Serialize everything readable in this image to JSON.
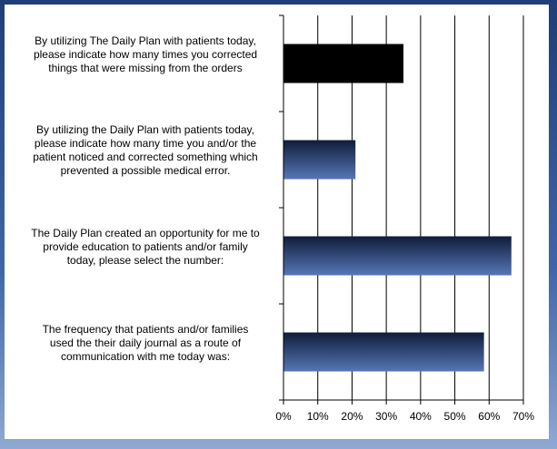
{
  "chart_data": {
    "type": "bar",
    "orientation": "horizontal",
    "categories": [
      "By utilizing The Daily Plan with patients today,\nplease indicate how  many times you corrected\nthings that were missing from the orders",
      "By utilizing the Daily Plan with patients today,\nplease indicate how  many time you and/or the\npatient noticed and corrected something which\nprevented a possible medical error.",
      "The Daily Plan created an opportunity for me to\nprovide education to patients and/or family\ntoday, please select the number:",
      "The frequency that patients and/or families\nused the their daily journal as a route of\ncommunication with me today was:"
    ],
    "values": [
      35,
      21,
      66.5,
      58.5
    ],
    "xlim": [
      0,
      70
    ],
    "x_ticks": [
      "0%",
      "10%",
      "20%",
      "30%",
      "40%",
      "50%",
      "60%",
      "70%"
    ],
    "grid": "vertical",
    "colors": {
      "first_bar": "#000000",
      "bar_gradient_dark": "#101c3a",
      "bar_gradient_light": "#5577b6",
      "frame": "#2b4a86"
    }
  }
}
